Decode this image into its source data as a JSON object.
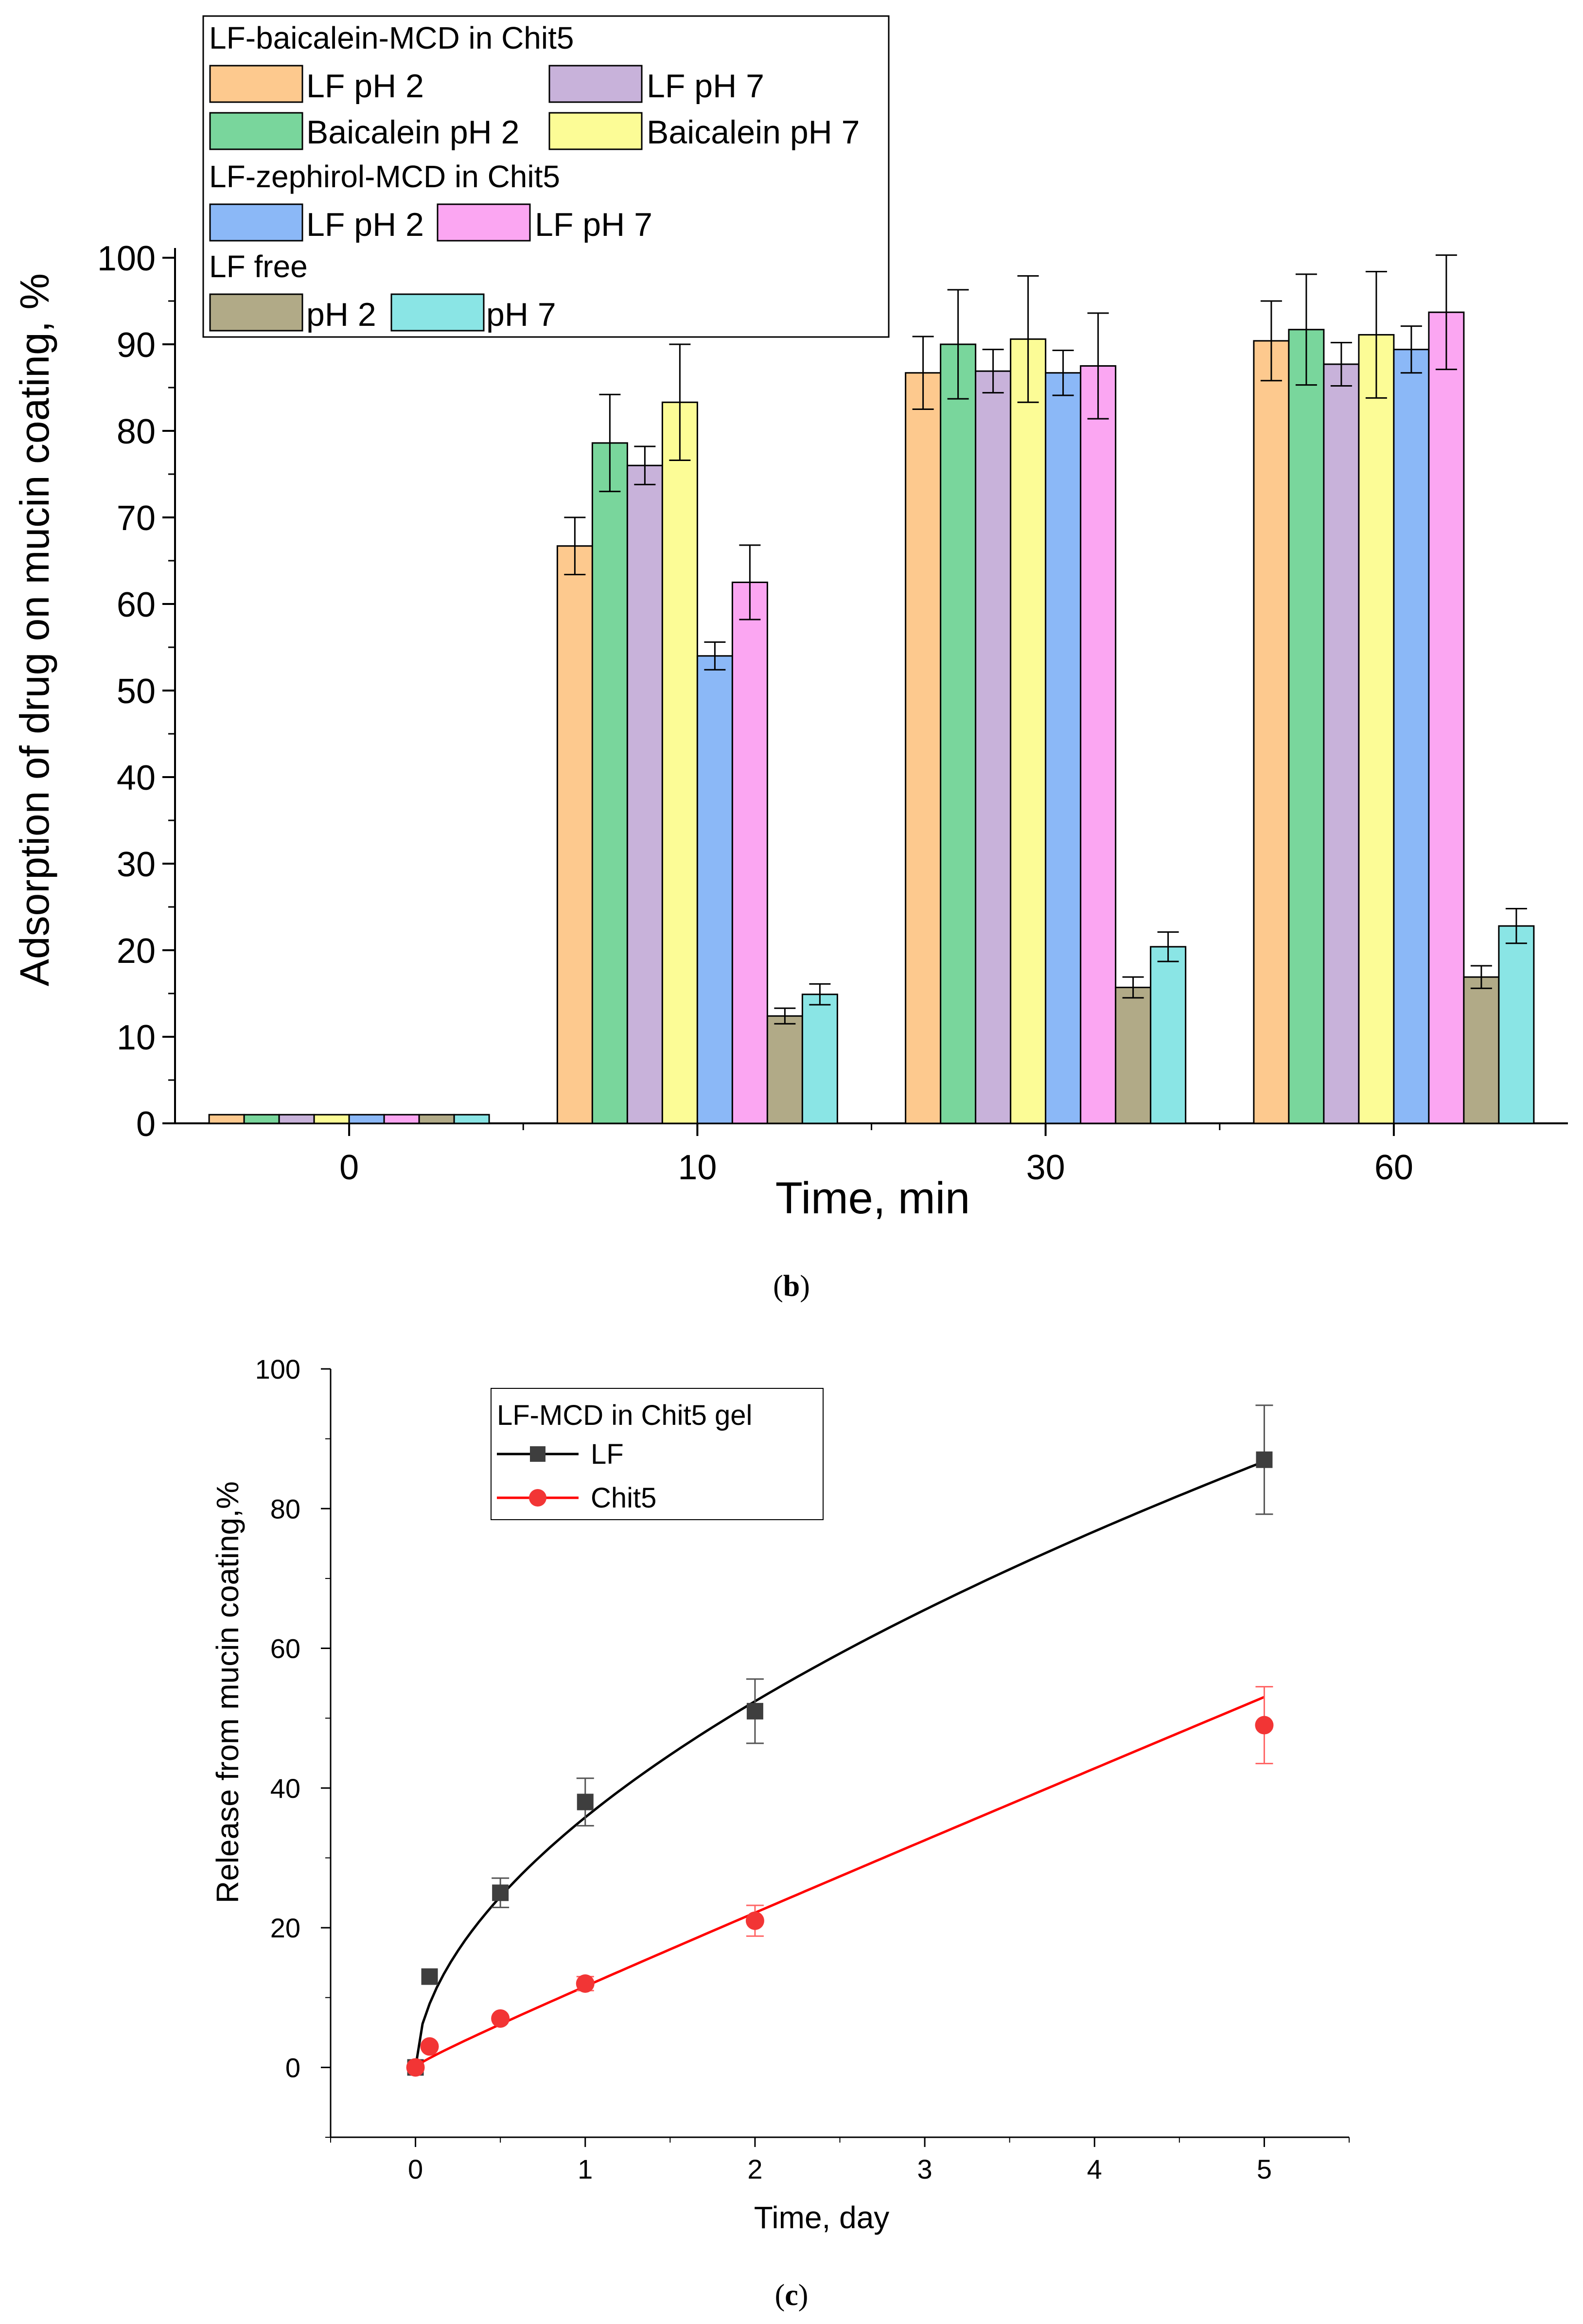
{
  "chart_data": [
    {
      "id": "b",
      "type": "bar",
      "caption_open": "(",
      "caption_letter": "b",
      "caption_close": ")",
      "xlabel": "Time, min",
      "ylabel": "Adsorption of drug on mucin coating, %",
      "ylim": [
        0,
        100
      ],
      "yticks": [
        "0",
        "10",
        "20",
        "30",
        "40",
        "50",
        "60",
        "70",
        "80",
        "90",
        "100"
      ],
      "categories": [
        "0",
        "10",
        "30",
        "60"
      ],
      "legend": {
        "position": "top-left",
        "groups": [
          {
            "title": "LF-baicalein-MCD in Chit5",
            "entries": [
              "LF pH 2",
              "LF pH 7",
              "Baicalein pH 2",
              "Baicalein pH 7"
            ]
          },
          {
            "title": "LF-zephirol-MCD in Chit5",
            "entries": [
              "LF pH 2",
              "LF pH 7"
            ]
          },
          {
            "title": "LF free",
            "entries": [
              "pH 2",
              "pH 7"
            ]
          }
        ]
      },
      "series": [
        {
          "name": "LF pH 2 (LF-baicalein-MCD)",
          "color": "#fdc98e",
          "values": [
            1,
            66.7,
            86.7,
            90.4
          ],
          "errors": [
            0,
            3.3,
            4.2,
            4.6
          ]
        },
        {
          "name": "Baicalein pH 2",
          "color": "#79d69c",
          "values": [
            1,
            78.6,
            90,
            91.7
          ],
          "errors": [
            0,
            5.6,
            6.3,
            6.4
          ]
        },
        {
          "name": "LF pH 7 (LF-baicalein-MCD)",
          "color": "#c8b2da",
          "values": [
            1,
            76,
            86.9,
            87.7
          ],
          "errors": [
            0,
            2.2,
            2.5,
            2.5
          ]
        },
        {
          "name": "Baicalein pH 7",
          "color": "#fcfc96",
          "values": [
            1,
            83.3,
            90.6,
            91.1
          ],
          "errors": [
            0,
            6.7,
            7.3,
            7.3
          ]
        },
        {
          "name": "LF pH 2 (LF-zephirol-MCD)",
          "color": "#8bb8f7",
          "values": [
            1,
            54,
            86.7,
            89.4
          ],
          "errors": [
            0,
            1.6,
            2.6,
            2.7
          ]
        },
        {
          "name": "LF pH 7 (LF-zephirol-MCD)",
          "color": "#fba6f2",
          "values": [
            1,
            62.5,
            87.5,
            93.7
          ],
          "errors": [
            0,
            4.3,
            6.1,
            6.6
          ]
        },
        {
          "name": "LF free pH 2",
          "color": "#b1aa87",
          "values": [
            1,
            12.4,
            15.7,
            16.9
          ],
          "errors": [
            0,
            0.9,
            1.2,
            1.3
          ]
        },
        {
          "name": "LF free pH 7",
          "color": "#8ae5e5",
          "values": [
            1,
            14.9,
            20.4,
            22.8
          ],
          "errors": [
            0,
            1.2,
            1.7,
            2
          ]
        }
      ]
    },
    {
      "id": "c",
      "type": "line",
      "caption_open": "(",
      "caption_letter": "c",
      "caption_close": ")",
      "xlabel": "Time, day",
      "ylabel": "Release from mucin coating,%",
      "xlim": [
        -0.5,
        5.5
      ],
      "ylim": [
        -10,
        100
      ],
      "xticks": [
        "0",
        "1",
        "2",
        "3",
        "4",
        "5"
      ],
      "yticks": [
        "0",
        "20",
        "40",
        "60",
        "80",
        "100"
      ],
      "legend": {
        "position": "top-left",
        "title": "LF-MCD in Chit5 gel"
      },
      "series": [
        {
          "name": "LF",
          "color": "#000000",
          "marker": "square",
          "marker_color": "#3e3e3e",
          "x": [
            0,
            0.083,
            0.5,
            1,
            2,
            5
          ],
          "y": [
            0,
            13,
            25,
            38,
            51,
            87
          ],
          "errors": [
            0,
            0,
            2.1,
            3.4,
            4.6,
            7.8
          ]
        },
        {
          "name": "Chit5",
          "color": "#ff0000",
          "marker": "circle",
          "marker_color": "#f23535",
          "x": [
            0,
            0.083,
            0.5,
            1,
            2,
            5
          ],
          "y": [
            0,
            3,
            7,
            12,
            21,
            49
          ],
          "errors": [
            0,
            0,
            0,
            1,
            2.2,
            5.5
          ]
        }
      ]
    }
  ]
}
